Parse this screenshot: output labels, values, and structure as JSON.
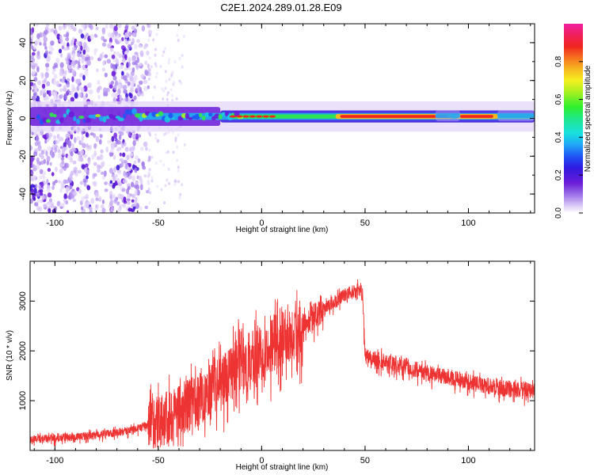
{
  "title": "C2E1.2024.289.01.28.E09",
  "colors": {
    "snr_line": "#ee3333",
    "background": "#ffffff",
    "axis": "#000000"
  },
  "chart_data": [
    {
      "type": "heatmap",
      "xlabel": "Height of straight line (km)",
      "ylabel": "Frequency (Hz)",
      "xlim": [
        -112,
        132
      ],
      "ylim": [
        -50,
        50
      ],
      "xticks": [
        -100,
        -50,
        0,
        50,
        100
      ],
      "yticks": [
        -40,
        -20,
        0,
        20,
        40
      ],
      "grid": false,
      "colorbar": {
        "label": "Normalized spectral amplitude",
        "range": [
          0,
          1
        ],
        "ticks": [
          "0.0",
          "0.2",
          "0.4",
          "0.6",
          "0.8"
        ],
        "colormap": "rainbow (white/lavender low → violet → blue → cyan → green → yellow → orange → red → magenta high)"
      },
      "features": {
        "central_ridge_frequency_hz": 1,
        "strongest_band_km": [
          38,
          90
        ],
        "strongest_band_km_2": [
          96,
          112
        ],
        "noisy_region_km": [
          -112,
          -55
        ]
      }
    },
    {
      "type": "line",
      "xlabel": "Height of straight line (km)",
      "ylabel": "SNR (10 * v/v)",
      "xlim": [
        -112,
        132
      ],
      "ylim": [
        0,
        3800
      ],
      "xticks": [
        -100,
        -50,
        0,
        50,
        100
      ],
      "yticks": [
        1000,
        2000,
        3000
      ],
      "grid": false,
      "series": [
        {
          "x": [
            -112,
            -100,
            -90,
            -80,
            -70,
            -60,
            -55,
            -50,
            -45,
            -40,
            -35,
            -30,
            -25,
            -20,
            -15,
            -10,
            -5,
            0,
            5,
            10,
            15,
            20,
            25,
            30,
            35,
            40,
            45,
            48,
            49,
            50,
            55,
            60,
            70,
            80,
            90,
            100,
            110,
            120,
            132
          ],
          "values": [
            250,
            260,
            290,
            330,
            380,
            450,
            560,
            700,
            830,
            920,
            1050,
            1180,
            1350,
            1500,
            1750,
            1850,
            1950,
            2150,
            2300,
            2450,
            2550,
            2650,
            2750,
            2850,
            3000,
            3150,
            3230,
            3280,
            3000,
            1950,
            1880,
            1820,
            1720,
            1600,
            1520,
            1420,
            1330,
            1270,
            1250
          ]
        }
      ]
    }
  ]
}
